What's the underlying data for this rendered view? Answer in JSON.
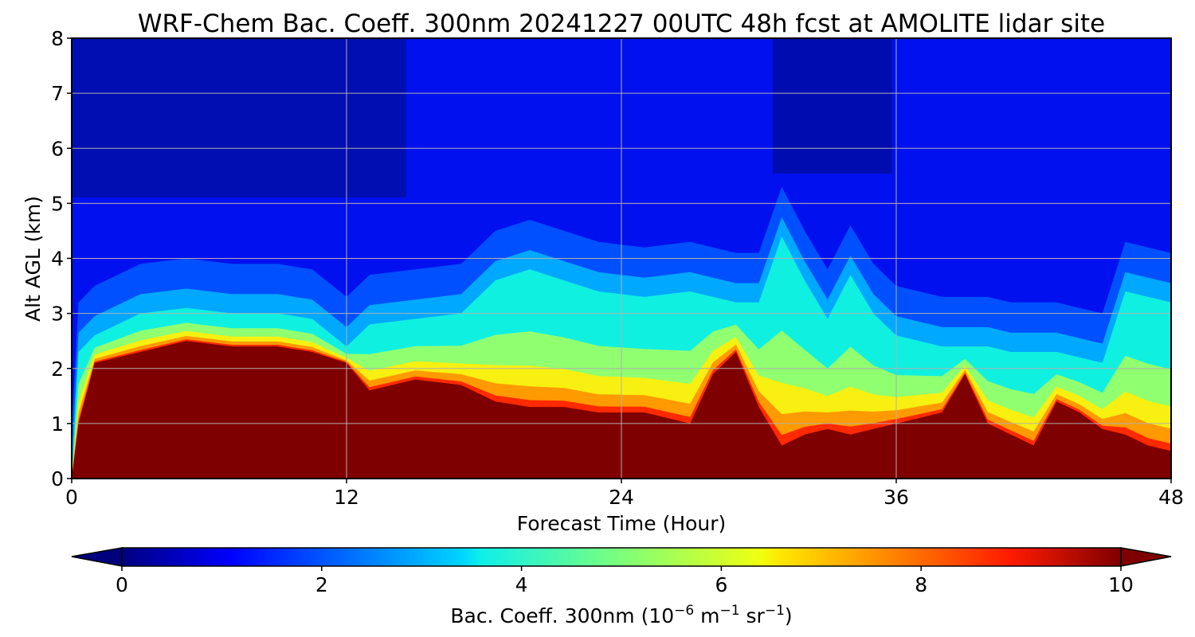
{
  "chart_data": {
    "type": "heatmap",
    "title": "WRF-Chem Bac. Coeff. 300nm  20241227 00UTC 48h fcst at AMOLITE lidar site",
    "xlabel": "Forecast Time (Hour)",
    "ylabel": "Alt AGL (km)",
    "xlim": [
      0,
      48
    ],
    "ylim": [
      0,
      8
    ],
    "xticks": [
      "0",
      "12",
      "24",
      "36",
      "48"
    ],
    "yticks": [
      "0",
      "1",
      "2",
      "3",
      "4",
      "5",
      "6",
      "7",
      "8"
    ],
    "grid": true,
    "colorbar": {
      "label_main": "Bac. Coeff. 300nm  (10",
      "label_exp1": "−6",
      "label_unit1": " m",
      "label_exp2": "−1",
      "label_unit2": " sr",
      "label_exp3": "−1",
      "label_close": ")",
      "min": 0,
      "max": 10,
      "ticks": [
        "0",
        "2",
        "4",
        "6",
        "8",
        "10"
      ],
      "extend": "both",
      "colormap": "jet"
    },
    "profile_times": [
      0,
      0.3,
      1,
      3,
      5,
      7,
      9,
      10.5,
      12,
      13,
      15,
      17,
      18.5,
      20,
      21.5,
      23,
      25,
      27,
      28,
      29,
      30,
      31,
      32,
      33,
      34,
      35,
      36,
      37,
      38,
      39,
      40,
      41,
      42,
      43,
      44,
      45,
      46,
      47,
      48
    ],
    "saturated_layer_top_km": [
      0,
      1.0,
      2.1,
      2.3,
      2.5,
      2.4,
      2.4,
      2.3,
      2.1,
      1.6,
      1.8,
      1.7,
      1.4,
      1.3,
      1.3,
      1.2,
      1.2,
      1.0,
      1.9,
      2.3,
      1.3,
      0.6,
      0.8,
      0.9,
      0.8,
      0.9,
      1.0,
      1.1,
      1.2,
      1.9,
      1.0,
      0.8,
      0.6,
      1.4,
      1.2,
      0.9,
      0.8,
      0.6,
      0.5
    ],
    "aerosol_layer_top_km": [
      0,
      2.3,
      2.6,
      3.0,
      3.1,
      3.0,
      3.0,
      2.9,
      2.4,
      2.8,
      2.9,
      3.0,
      3.6,
      3.8,
      3.6,
      3.4,
      3.3,
      3.4,
      3.3,
      3.2,
      3.2,
      4.4,
      3.6,
      2.9,
      3.7,
      3.0,
      2.6,
      2.5,
      2.4,
      2.4,
      2.4,
      2.3,
      2.3,
      2.3,
      2.2,
      2.1,
      3.4,
      3.3,
      3.2
    ]
  }
}
